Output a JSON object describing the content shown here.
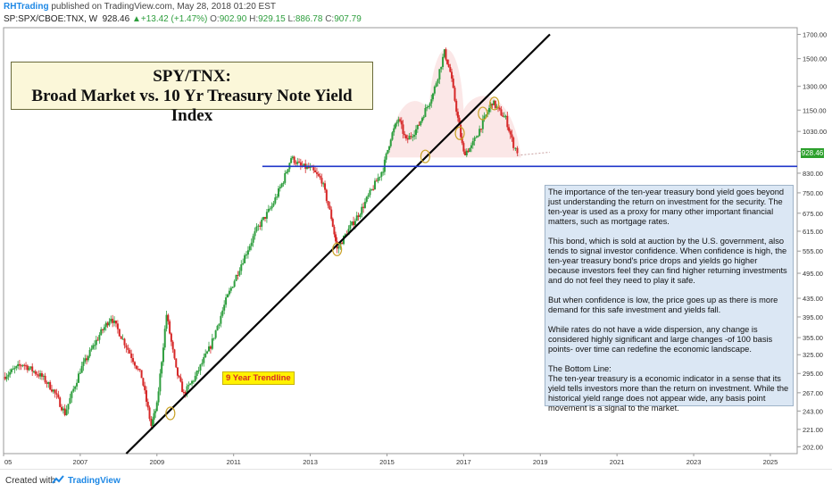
{
  "header": {
    "publisher": "RHTrading",
    "published_text": "published on TradingView.com, May 28, 2018 01:20 EST"
  },
  "symbol_line": {
    "symbol": "SP:SPX/CBOE:TNX, W",
    "last": "928.46",
    "arrow": "▲",
    "change": "+13.42 (+1.47%)",
    "o_label": "O:",
    "o": "902.90",
    "h_label": "H:",
    "h": "929.15",
    "l_label": "L:",
    "l": "886.78",
    "c_label": "C:",
    "c": "907.79"
  },
  "title": {
    "line1": "SPY/TNX:",
    "line2": "Broad Market vs. 10 Yr Treasury Note Yield Index"
  },
  "notes": [
    "The importance of the ten-year treasury bond yield goes beyond just understanding the return on investment for the security.  The ten-year is used as a proxy for many other important financial matters, such as mortgage rates.",
    "This bond, which is sold at auction by the U.S. government, also tends to signal investor confidence.  When confidence is  high, the ten-year treasury bond's price drops and yields go higher because investors feel they can find higher returning investments and do not feel they need to play it safe.",
    "But when confidence is low, the price goes up as there is  more demand for this safe investment and yields fall.",
    "While rates do not have a wide dispersion, any change is considered highly significant and large changes -of 100 basis  points- over time can redefine the economic landscape."
  ],
  "bottom_line": {
    "heading": "The Bottom Line:",
    "text": "The ten-year treasury is a economic indicator in a sense that  its yield tells investors more than the return on investment.  While the historical yield range does not appear wide, any basis point movement is a signal to the market."
  },
  "trendline_label": "9 Year Trendline",
  "price_tag": "928.46",
  "footer": {
    "created_with": "Created with",
    "brand": "TradingView"
  },
  "colors": {
    "up_candle": "#2e9e3e",
    "down_candle": "#d62828",
    "trendline": "#000000",
    "support_line": "#1f35c9",
    "highlight_circles": "#c9a227",
    "head_shoulders_zone": "#f6c9c9"
  },
  "chart_data": {
    "type": "candlestick",
    "scale": "log",
    "y_ticks": [
      202,
      221,
      243,
      267,
      295,
      325,
      355,
      395,
      435,
      495,
      555,
      615,
      675,
      750,
      830,
      928.46,
      1030,
      1150,
      1300,
      1500,
      1700
    ],
    "y_tick_labels": [
      "202.00",
      "221.00",
      "243.00",
      "267.00",
      "295.00",
      "325.00",
      "355.00",
      "395.00",
      "435.00",
      "495.00",
      "555.00",
      "615.00",
      "675.00",
      "750.00",
      "830.00",
      "928.46",
      "1030.00",
      "1150.00",
      "1300.00",
      "1500.00",
      "1700.00"
    ],
    "x_tick_labels": [
      "05",
      "2007",
      "2009",
      "2011",
      "2013",
      "2015",
      "2017",
      "2019",
      "2021",
      "2023",
      "2025"
    ],
    "x_range": [
      2005.0,
      2025.7
    ],
    "y_range": [
      195,
      1760
    ],
    "price_path": [
      [
        2005.0,
        290
      ],
      [
        2005.5,
        310
      ],
      [
        2006.0,
        290
      ],
      [
        2006.3,
        270
      ],
      [
        2006.6,
        240
      ],
      [
        2007.0,
        300
      ],
      [
        2007.5,
        360
      ],
      [
        2007.8,
        395
      ],
      [
        2008.2,
        340
      ],
      [
        2008.6,
        290
      ],
      [
        2008.85,
        225
      ],
      [
        2009.0,
        250
      ],
      [
        2009.25,
        400
      ],
      [
        2009.5,
        300
      ],
      [
        2009.7,
        265
      ],
      [
        2010.0,
        290
      ],
      [
        2010.4,
        340
      ],
      [
        2010.8,
        430
      ],
      [
        2011.2,
        520
      ],
      [
        2011.6,
        620
      ],
      [
        2012.0,
        700
      ],
      [
        2012.3,
        800
      ],
      [
        2012.5,
        900
      ],
      [
        2012.75,
        860
      ],
      [
        2013.0,
        850
      ],
      [
        2013.3,
        800
      ],
      [
        2013.55,
        660
      ],
      [
        2013.7,
        560
      ],
      [
        2014.0,
        620
      ],
      [
        2014.3,
        680
      ],
      [
        2014.6,
        760
      ],
      [
        2014.9,
        850
      ],
      [
        2015.1,
        1000
      ],
      [
        2015.3,
        1100
      ],
      [
        2015.5,
        980
      ],
      [
        2015.8,
        1050
      ],
      [
        2016.0,
        1150
      ],
      [
        2016.2,
        1250
      ],
      [
        2016.5,
        1550
      ],
      [
        2016.65,
        1400
      ],
      [
        2016.85,
        1100
      ],
      [
        2017.0,
        920
      ],
      [
        2017.2,
        950
      ],
      [
        2017.5,
        1080
      ],
      [
        2017.75,
        1200
      ],
      [
        2017.9,
        1150
      ],
      [
        2018.1,
        1100
      ],
      [
        2018.3,
        960
      ],
      [
        2018.4,
        928.46
      ]
    ],
    "trendline": {
      "from": [
        2008.2,
        195
      ],
      "to": [
        2019.25,
        1700
      ]
    },
    "support": {
      "value": 860,
      "from": 2011.75,
      "to": 2025.7
    },
    "dotted_projection": {
      "from": [
        2018.4,
        910
      ],
      "to": [
        2019.25,
        925
      ]
    },
    "circles": [
      [
        2009.35,
        240
      ],
      [
        2013.7,
        560
      ],
      [
        2016.0,
        905
      ],
      [
        2016.9,
        1020
      ],
      [
        2017.5,
        1130
      ],
      [
        2017.8,
        1190
      ]
    ],
    "head_shoulders_zone": [
      [
        2015.0,
        900
      ],
      [
        2018.5,
        900
      ]
    ]
  }
}
